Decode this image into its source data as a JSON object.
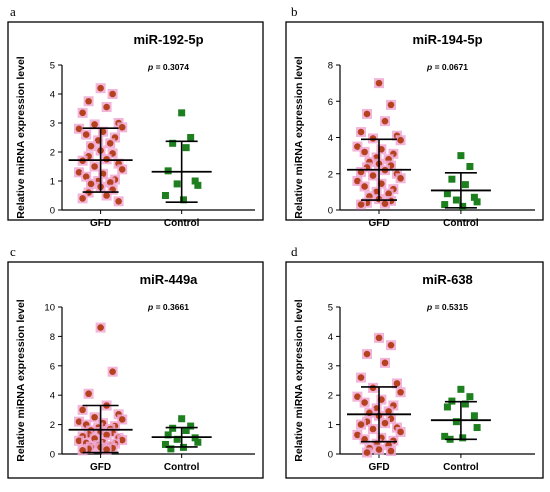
{
  "colors": {
    "gfd_point": "#b5421e",
    "gfd_halo": "#f0a8d2",
    "control_point": "#1e7f1e",
    "frame": "#000000"
  },
  "chart_data": [
    {
      "type": "scatter",
      "letter": "a",
      "title": "miR-192-5p",
      "p_prefix": "p",
      "p_value": "= 0.3074",
      "ylabel": "Relative miRNA expression level",
      "ylim": [
        0,
        5
      ],
      "yticks": [
        "0",
        "1",
        "2",
        "3",
        "4",
        "5"
      ],
      "categories": [
        "GFD",
        "Control"
      ],
      "series": [
        {
          "name": "GFD",
          "values": [
            4.2,
            4.0,
            3.75,
            3.55,
            3.35,
            3.0,
            2.95,
            2.85,
            2.8,
            2.7,
            2.6,
            2.5,
            2.4,
            2.3,
            2.2,
            2.05,
            1.95,
            1.85,
            1.75,
            1.7,
            1.6,
            1.5,
            1.4,
            1.3,
            1.25,
            1.15,
            1.05,
            1.0,
            0.95,
            0.9,
            0.8,
            0.7,
            0.6,
            0.5,
            0.4,
            0.3
          ],
          "mean": 1.72,
          "sd_low": 0.62,
          "sd_high": 2.82
        },
        {
          "name": "Control",
          "values": [
            3.35,
            2.5,
            2.3,
            2.15,
            1.35,
            1.0,
            0.9,
            0.85,
            0.5,
            0.35
          ],
          "mean": 1.32,
          "sd_low": 0.27,
          "sd_high": 2.37
        }
      ]
    },
    {
      "type": "scatter",
      "letter": "b",
      "title": "miR-194-5p",
      "p_prefix": "p",
      "p_value": "= 0.0671",
      "ylabel": "Relative miRNA expression level",
      "ylim": [
        0,
        8
      ],
      "yticks": [
        "0",
        "2",
        "4",
        "6",
        "8"
      ],
      "categories": [
        "GFD",
        "Control"
      ],
      "series": [
        {
          "name": "GFD",
          "values": [
            7.0,
            5.8,
            5.3,
            4.9,
            4.3,
            4.1,
            3.95,
            3.85,
            3.5,
            3.35,
            3.2,
            3.1,
            2.9,
            2.8,
            2.65,
            2.55,
            2.45,
            2.35,
            2.2,
            2.1,
            2.0,
            1.9,
            1.75,
            1.6,
            1.45,
            1.3,
            1.15,
            1.0,
            0.9,
            0.75,
            0.6,
            0.5,
            0.4,
            0.35,
            0.3
          ],
          "mean": 2.22,
          "sd_low": 0.55,
          "sd_high": 3.9
        },
        {
          "name": "Control",
          "values": [
            3.0,
            2.4,
            1.7,
            1.4,
            0.9,
            0.7,
            0.55,
            0.45,
            0.3,
            0.2
          ],
          "mean": 1.08,
          "sd_low": 0.12,
          "sd_high": 2.05
        }
      ]
    },
    {
      "type": "scatter",
      "letter": "c",
      "title": "miR-449a",
      "p_prefix": "p",
      "p_value": "= 0.3661",
      "ylabel": "Relative miRNA expression level",
      "ylim": [
        0,
        10
      ],
      "yticks": [
        "0",
        "2",
        "4",
        "6",
        "8",
        "10"
      ],
      "categories": [
        "GFD",
        "Control"
      ],
      "series": [
        {
          "name": "GFD",
          "values": [
            8.6,
            5.6,
            4.1,
            3.3,
            3.0,
            2.7,
            2.5,
            2.35,
            2.2,
            2.1,
            2.0,
            1.9,
            1.8,
            1.7,
            1.6,
            1.5,
            1.45,
            1.35,
            1.3,
            1.2,
            1.1,
            1.05,
            0.95,
            0.9,
            0.8,
            0.75,
            0.7,
            0.6,
            0.55,
            0.5,
            0.45,
            0.4,
            0.35,
            0.3,
            0.25
          ],
          "mean": 1.65,
          "sd_low": 0.1,
          "sd_high": 3.3
        },
        {
          "name": "Control",
          "values": [
            2.4,
            1.9,
            1.75,
            1.6,
            1.3,
            1.1,
            1.0,
            0.8,
            0.65,
            0.45,
            0.35
          ],
          "mean": 1.15,
          "sd_low": 0.48,
          "sd_high": 1.8
        }
      ]
    },
    {
      "type": "scatter",
      "letter": "d",
      "title": "miR-638",
      "p_prefix": "p",
      "p_value": "= 0.5315",
      "ylabel": "Relative miRNA expression level",
      "ylim": [
        0,
        5
      ],
      "yticks": [
        "0",
        "1",
        "2",
        "3",
        "4",
        "5"
      ],
      "categories": [
        "GFD",
        "Control"
      ],
      "series": [
        {
          "name": "GFD",
          "values": [
            3.95,
            3.7,
            3.4,
            3.1,
            2.6,
            2.4,
            2.25,
            2.1,
            1.95,
            1.85,
            1.75,
            1.65,
            1.55,
            1.45,
            1.4,
            1.3,
            1.2,
            1.1,
            1.05,
            1.0,
            0.9,
            0.85,
            0.75,
            0.65,
            0.55,
            0.5,
            0.45,
            0.35,
            0.3,
            0.2,
            0.15,
            0.1,
            0.05
          ],
          "mean": 1.35,
          "sd_low": 0.42,
          "sd_high": 2.28
        },
        {
          "name": "Control",
          "values": [
            2.2,
            1.95,
            1.8,
            1.7,
            1.6,
            1.3,
            1.1,
            0.9,
            0.6,
            0.55,
            0.5
          ],
          "mean": 1.15,
          "sd_low": 0.5,
          "sd_high": 1.78
        }
      ]
    }
  ]
}
